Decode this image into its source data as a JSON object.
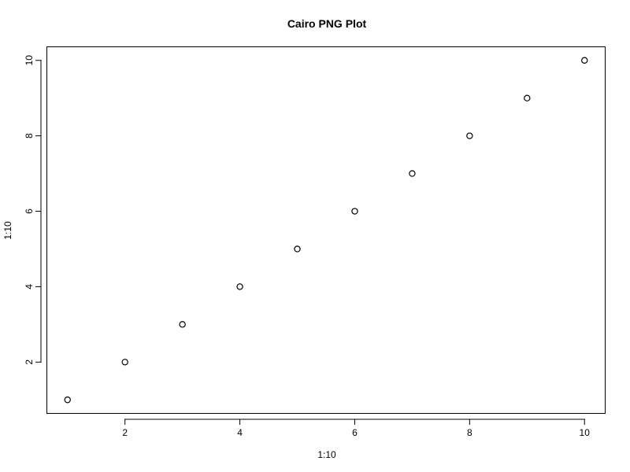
{
  "chart_data": {
    "type": "scatter",
    "title": "Cairo PNG Plot",
    "xlabel": "1:10",
    "ylabel": "1:10",
    "x": [
      1,
      2,
      3,
      4,
      5,
      6,
      7,
      8,
      9,
      10
    ],
    "y": [
      1,
      2,
      3,
      4,
      5,
      6,
      7,
      8,
      9,
      10
    ],
    "xlim": [
      0.64,
      10.36
    ],
    "ylim": [
      0.64,
      10.36
    ],
    "xticks": [
      2,
      4,
      6,
      8,
      10
    ],
    "yticks": [
      2,
      4,
      6,
      8,
      10
    ],
    "marker": "open-circle",
    "grid": false,
    "legend": false,
    "colors": {
      "points": "#000000",
      "axes": "#000000",
      "background": "#ffffff"
    }
  }
}
